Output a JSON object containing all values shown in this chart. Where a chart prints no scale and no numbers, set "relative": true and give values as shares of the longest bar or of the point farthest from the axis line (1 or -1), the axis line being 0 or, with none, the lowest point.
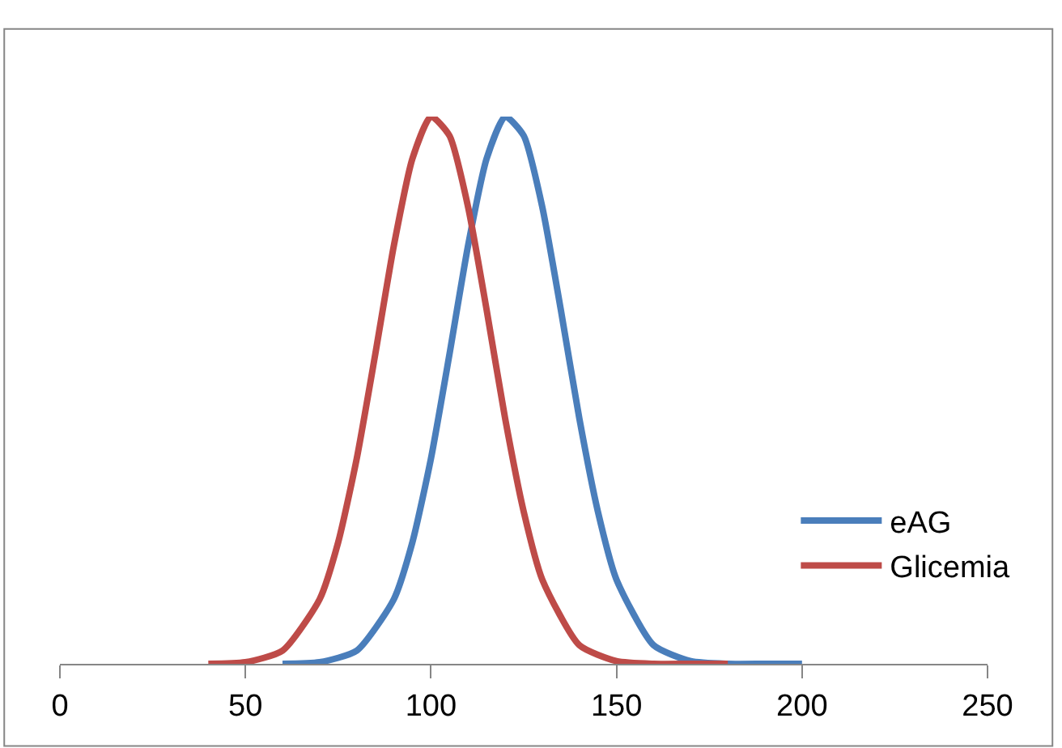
{
  "chart_data": {
    "type": "line",
    "relative": true,
    "xlim": [
      0,
      250
    ],
    "xticks": [
      0,
      50,
      100,
      150,
      200,
      250
    ],
    "legend": "right",
    "marker": "none",
    "line_style": "solid",
    "series": [
      {
        "name": "eAG",
        "color": "#4a7ebb",
        "x": [
          60,
          70,
          80,
          90,
          95,
          100,
          105,
          110,
          115,
          120,
          125,
          130,
          135,
          140,
          145,
          150,
          160,
          170,
          180,
          190,
          200
        ],
        "values": [
          0,
          0.003,
          0.024,
          0.118,
          0.222,
          0.375,
          0.566,
          0.764,
          0.923,
          1,
          0.965,
          0.835,
          0.647,
          0.448,
          0.278,
          0.154,
          0.034,
          0.005,
          0,
          0,
          0
        ]
      },
      {
        "name": "Glicemia",
        "color": "#be4b48",
        "x": [
          40,
          50,
          60,
          70,
          75,
          80,
          85,
          90,
          95,
          100,
          105,
          110,
          115,
          120,
          125,
          130,
          140,
          150,
          160,
          170,
          180
        ],
        "values": [
          0,
          0.003,
          0.024,
          0.118,
          0.222,
          0.375,
          0.566,
          0.764,
          0.923,
          1,
          0.965,
          0.835,
          0.647,
          0.448,
          0.278,
          0.154,
          0.034,
          0.005,
          0,
          0,
          0
        ]
      }
    ]
  }
}
